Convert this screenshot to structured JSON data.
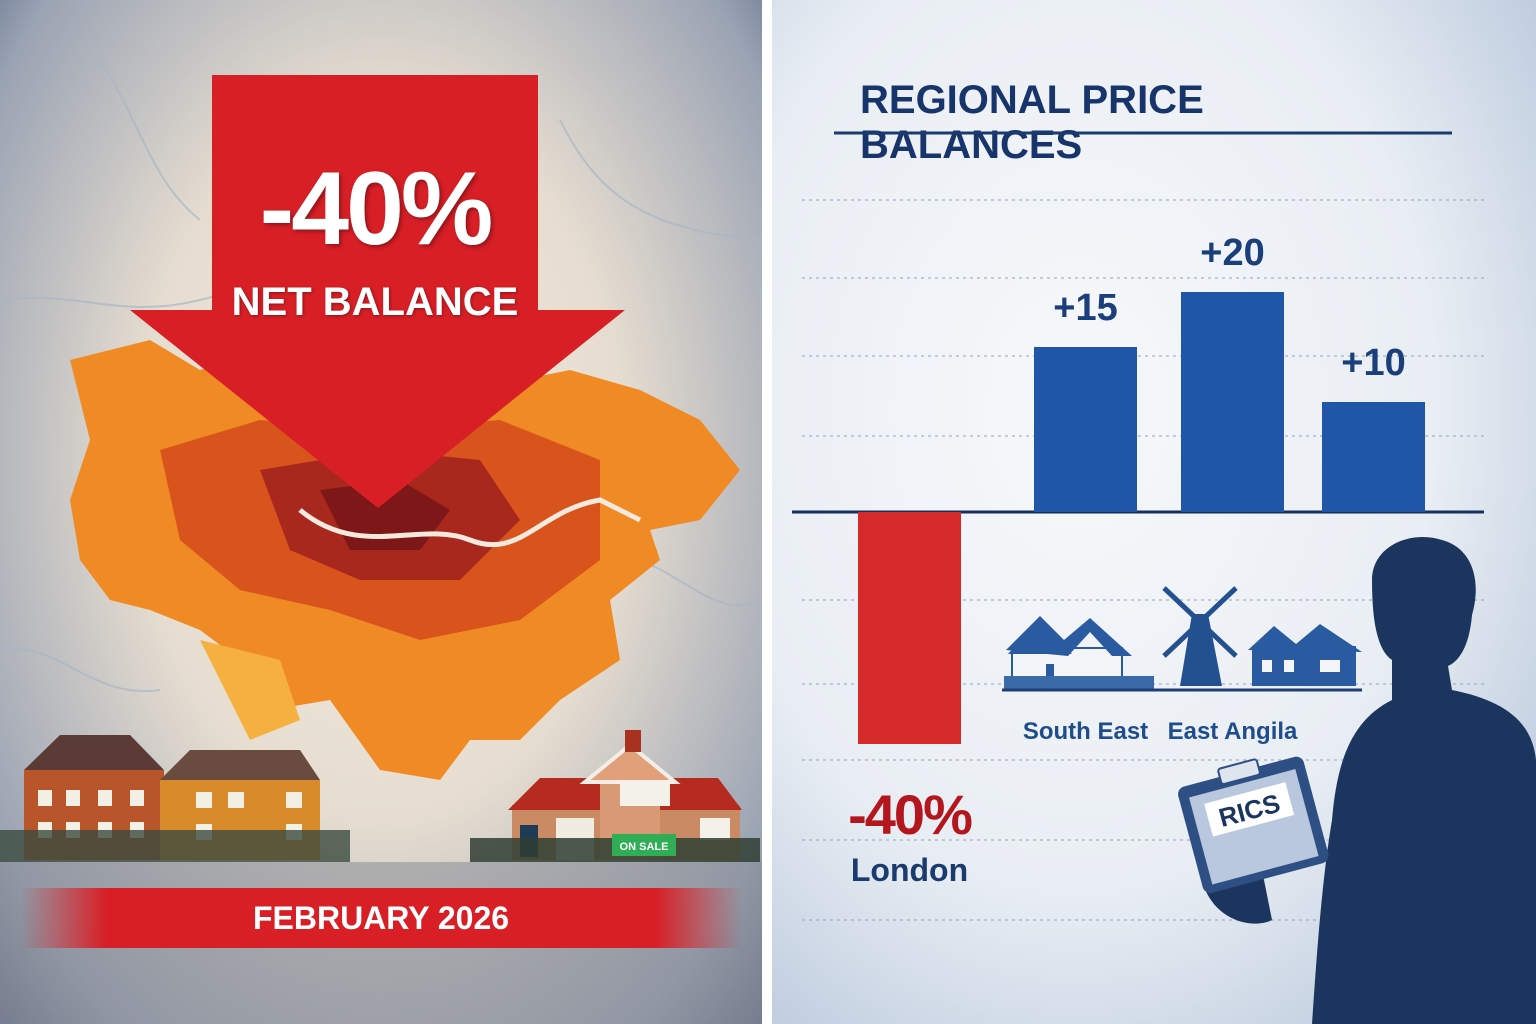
{
  "left_panel": {
    "headline_value": "-40%",
    "headline_label": "NET BALANCE",
    "date_banner": "FEBRUARY 2026",
    "sign_text": "ON SALE",
    "colors": {
      "arrow": "#d81f26",
      "map_light": "#f5a623",
      "map_dark": "#8e1b1b"
    },
    "icons": [
      "down-arrow-icon",
      "london-map-icon",
      "house-icon"
    ]
  },
  "right_panel": {
    "title": "REGIONAL PRICE BALANCES",
    "clipboard_text": "RICS",
    "icons": [
      "house-icon",
      "windmill-icon",
      "person-silhouette-icon",
      "clipboard-icon"
    ]
  },
  "chart_data": {
    "type": "bar",
    "title": "REGIONAL PRICE BALANCES",
    "categories": [
      "London",
      "South East",
      "East Angila",
      ""
    ],
    "values": [
      -40,
      15,
      20,
      10
    ],
    "value_labels": [
      "-40%",
      "+15",
      "+20",
      "+10"
    ],
    "colors": [
      "#d42a2a",
      "#1f56a8",
      "#1f56a8",
      "#1f56a8"
    ],
    "grid": true,
    "legend": "none"
  }
}
